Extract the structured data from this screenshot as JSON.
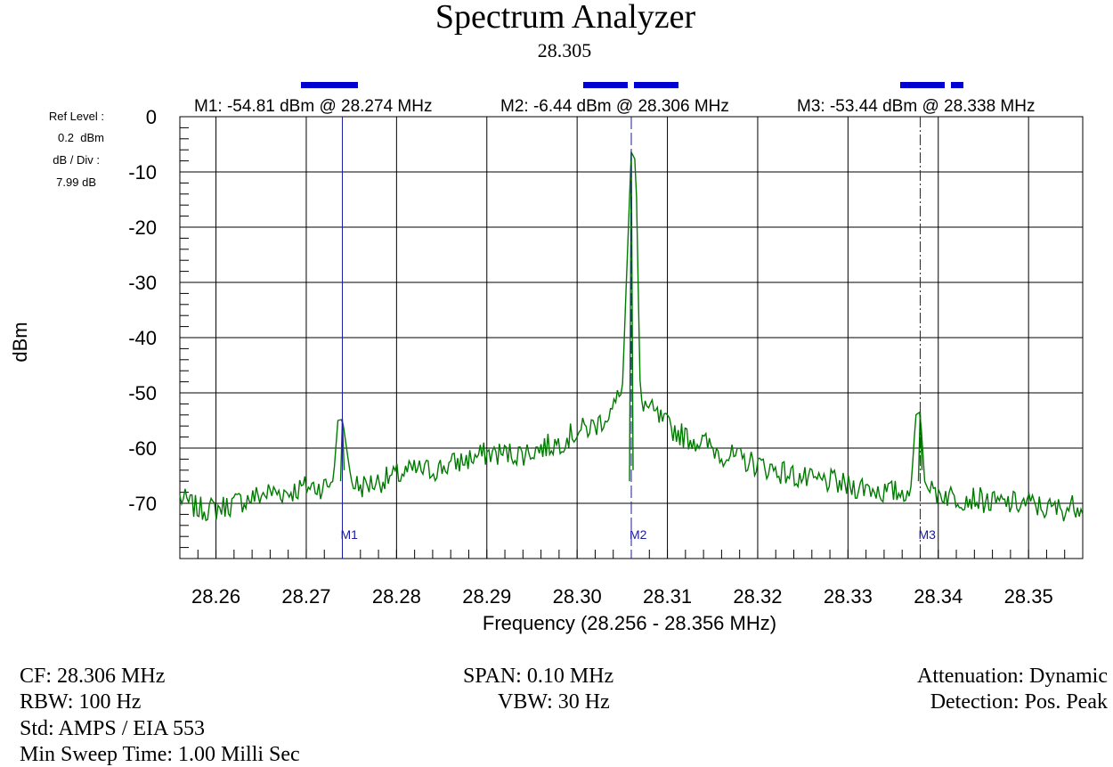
{
  "chart_data": {
    "type": "line",
    "title": "Spectrum Analyzer",
    "subtitle": "28.305",
    "xlabel": "Frequency (28.256 - 28.356 MHz)",
    "ylabel": "dBm",
    "xlim": [
      28.256,
      28.356
    ],
    "ylim": [
      -80,
      0
    ],
    "grid": true,
    "x_ticks": [
      28.26,
      28.27,
      28.28,
      28.29,
      28.3,
      28.31,
      28.32,
      28.33,
      28.34,
      28.35
    ],
    "x_tick_labels": [
      "28.26",
      "28.27",
      "28.28",
      "28.29",
      "28.30",
      "28.31",
      "28.32",
      "28.33",
      "28.34",
      "28.35"
    ],
    "y_ticks": [
      0,
      -10,
      -20,
      -30,
      -40,
      -50,
      -60,
      -70
    ],
    "y_tick_labels": [
      "0",
      "-10",
      "-20",
      "-30",
      "-40",
      "-50",
      "-60",
      "-70"
    ],
    "ref_level": {
      "label": "Ref Level :",
      "value": "0.2  dBm",
      "div_label": "dB / Div :",
      "div_value": "7.99 dB"
    },
    "markers": [
      {
        "id": "M1",
        "label": "M1",
        "freq": 28.274,
        "dbm": -54.81,
        "readout": "M1: -54.81 dBm @ 28.274 MHz",
        "style": "solid"
      },
      {
        "id": "M2",
        "label": "M2",
        "freq": 28.306,
        "dbm": -6.44,
        "readout": "M2: -6.44 dBm @ 28.306 MHz",
        "style": "dash"
      },
      {
        "id": "M3",
        "label": "M3",
        "freq": 28.338,
        "dbm": -53.44,
        "readout": "M3: -53.44 dBm @ 28.338 MHz",
        "style": "dashdot"
      }
    ],
    "series": [
      {
        "color": "#007a00",
        "x": [
          28.256,
          28.258,
          28.26,
          28.262,
          28.264,
          28.266,
          28.268,
          28.27,
          28.272,
          28.273,
          28.2735,
          28.274,
          28.275,
          28.276,
          28.278,
          28.28,
          28.282,
          28.284,
          28.286,
          28.288,
          28.29,
          28.292,
          28.294,
          28.296,
          28.298,
          28.3,
          28.302,
          28.304,
          28.3045,
          28.305,
          28.3055,
          28.306,
          28.3065,
          28.307,
          28.3075,
          28.308,
          28.31,
          28.312,
          28.314,
          28.316,
          28.318,
          28.32,
          28.322,
          28.324,
          28.326,
          28.328,
          28.33,
          28.332,
          28.334,
          28.336,
          28.337,
          28.3375,
          28.338,
          28.3385,
          28.339,
          28.34,
          28.342,
          28.344,
          28.346,
          28.348,
          28.35,
          28.352,
          28.354,
          28.356
        ],
        "values": [
          -69,
          -71,
          -71,
          -70,
          -69,
          -68,
          -68,
          -67,
          -67,
          -66,
          -55,
          -54.81,
          -66,
          -67,
          -66,
          -65,
          -64,
          -64,
          -63,
          -62,
          -61,
          -61,
          -61,
          -60,
          -59,
          -57,
          -56,
          -53,
          -51,
          -50,
          -28,
          -6.44,
          -8,
          -51,
          -52,
          -53,
          -56,
          -58,
          -59,
          -61,
          -62,
          -63,
          -64,
          -65,
          -66,
          -66,
          -67,
          -67,
          -68,
          -68,
          -67,
          -54,
          -53.44,
          -66,
          -68,
          -68,
          -69,
          -69,
          -70,
          -70,
          -70,
          -71,
          -71,
          -70
        ]
      }
    ]
  },
  "footer": {
    "cf": "CF: 28.306 MHz",
    "rbw": "RBW: 100 Hz",
    "std": "Std: AMPS / EIA 553",
    "sweep": "Min Sweep Time: 1.00 Milli Sec",
    "span": "SPAN: 0.10 MHz",
    "vbw": "VBW: 30 Hz",
    "attenuation": "Attenuation: Dynamic",
    "detection": "Detection: Pos. Peak"
  }
}
